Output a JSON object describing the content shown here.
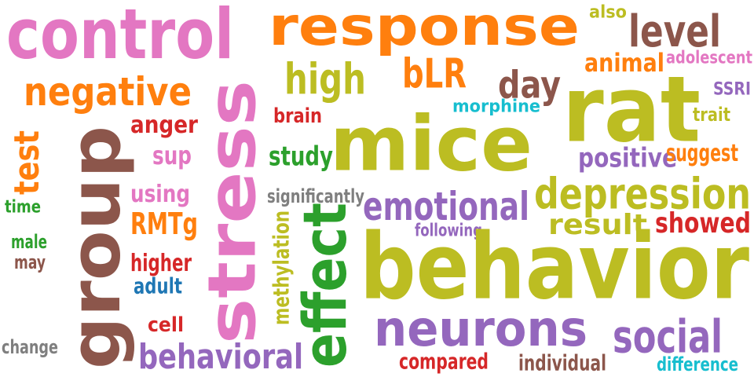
{
  "colors": {
    "pink": "#e377c2",
    "orange": "#ff7f0e",
    "olive": "#bcbd22",
    "brown": "#8c564b",
    "purple": "#9467bd",
    "red": "#d62728",
    "green": "#2ca02c",
    "cyan": "#17becf",
    "blue": "#1f77b4",
    "gray": "#7f7f7f"
  },
  "words": [
    {
      "text": "control",
      "color": "pink"
    },
    {
      "text": "response",
      "color": "orange"
    },
    {
      "text": "level",
      "color": "brown"
    },
    {
      "text": "also",
      "color": "olive"
    },
    {
      "text": "animal",
      "color": "orange"
    },
    {
      "text": "adolescent",
      "color": "pink"
    },
    {
      "text": "negative",
      "color": "orange"
    },
    {
      "text": "high",
      "color": "olive"
    },
    {
      "text": "bLR",
      "color": "orange"
    },
    {
      "text": "day",
      "color": "brown"
    },
    {
      "text": "rat",
      "color": "olive"
    },
    {
      "text": "SSRI",
      "color": "purple"
    },
    {
      "text": "trait",
      "color": "olive"
    },
    {
      "text": "morphine",
      "color": "cyan"
    },
    {
      "text": "brain",
      "color": "red"
    },
    {
      "text": "anger",
      "color": "red"
    },
    {
      "text": "mice",
      "color": "olive"
    },
    {
      "text": "test",
      "color": "orange"
    },
    {
      "text": "group",
      "color": "brown"
    },
    {
      "text": "stress",
      "color": "pink"
    },
    {
      "text": "sup",
      "color": "pink"
    },
    {
      "text": "study",
      "color": "green"
    },
    {
      "text": "positive",
      "color": "purple"
    },
    {
      "text": "suggest",
      "color": "orange"
    },
    {
      "text": "depression",
      "color": "olive"
    },
    {
      "text": "using",
      "color": "pink"
    },
    {
      "text": "significantly",
      "color": "gray"
    },
    {
      "text": "emotional",
      "color": "purple"
    },
    {
      "text": "time",
      "color": "green"
    },
    {
      "text": "RMTg",
      "color": "orange"
    },
    {
      "text": "result",
      "color": "olive"
    },
    {
      "text": "showed",
      "color": "red"
    },
    {
      "text": "following",
      "color": "purple"
    },
    {
      "text": "male",
      "color": "green"
    },
    {
      "text": "may",
      "color": "brown"
    },
    {
      "text": "higher",
      "color": "red"
    },
    {
      "text": "methylation",
      "color": "olive"
    },
    {
      "text": "effect",
      "color": "green"
    },
    {
      "text": "behavior",
      "color": "olive"
    },
    {
      "text": "adult",
      "color": "blue"
    },
    {
      "text": "cell",
      "color": "red"
    },
    {
      "text": "neurons",
      "color": "purple"
    },
    {
      "text": "social",
      "color": "purple"
    },
    {
      "text": "change",
      "color": "gray"
    },
    {
      "text": "behavioral",
      "color": "purple"
    },
    {
      "text": "compared",
      "color": "red"
    },
    {
      "text": "individual",
      "color": "brown"
    },
    {
      "text": "difference",
      "color": "cyan"
    }
  ]
}
